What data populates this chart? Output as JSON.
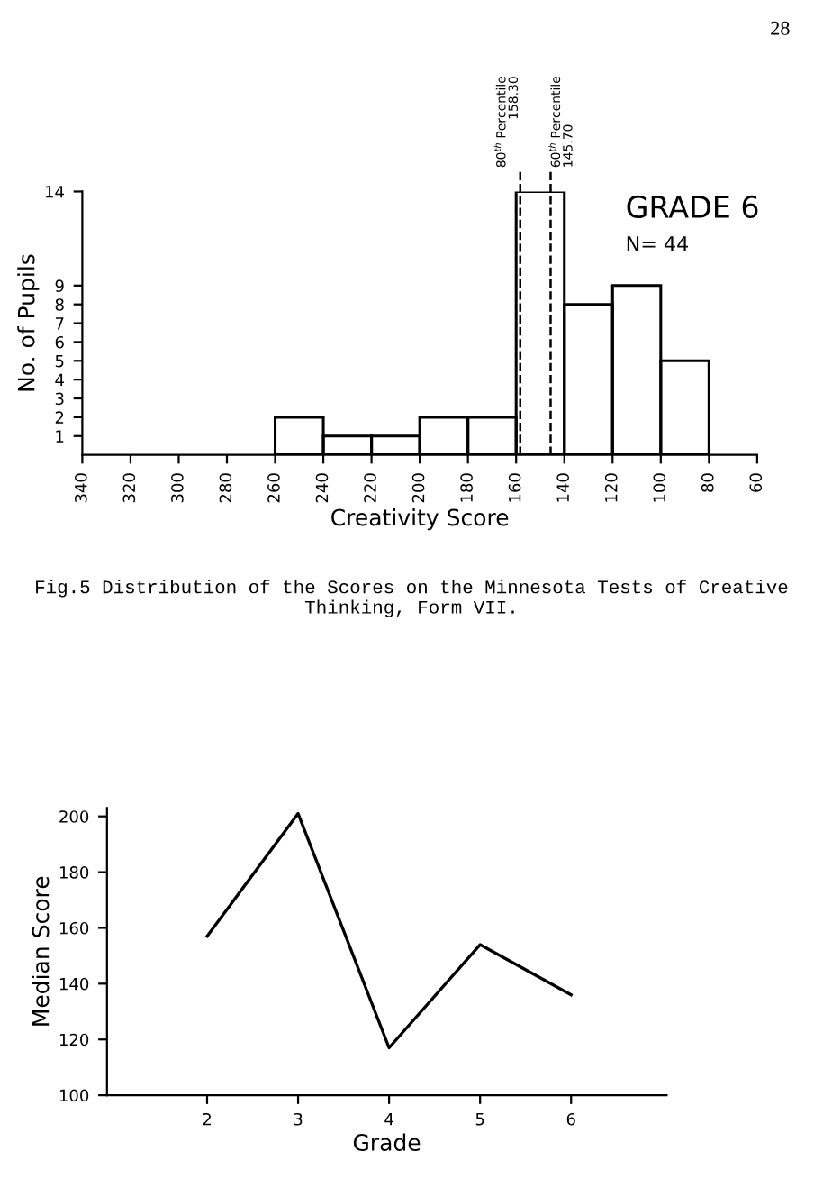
{
  "chart_data": [
    {
      "type": "histogram",
      "xlabel": "Creativity Score",
      "ylabel": "No. of Pupils",
      "color": "#000000",
      "bins": [
        260,
        240,
        220,
        200,
        180,
        160,
        140,
        120,
        100,
        80
      ],
      "values": [
        2,
        1,
        1,
        2,
        2,
        14,
        8,
        9,
        5
      ],
      "xlim": [
        340,
        60
      ],
      "xticks": [
        340,
        320,
        300,
        280,
        260,
        240,
        220,
        200,
        180,
        160,
        140,
        120,
        100,
        80,
        60
      ],
      "ylim": [
        0,
        14
      ],
      "yticks": [
        1,
        2,
        3,
        4,
        5,
        6,
        7,
        8,
        9,
        14
      ],
      "ref_lines": [
        {
          "axis": "x",
          "value": 158.3,
          "label": "80$^{th}$ Percentile\n158.30",
          "line_style": "dashed",
          "color": "#000000"
        },
        {
          "axis": "x",
          "value": 145.7,
          "label": "60$^{th}$ Percentile\n145.70",
          "line_style": "dashed",
          "color": "#000000"
        }
      ],
      "annotations": [
        "GRADE 6",
        "N= 44",
        "Fig.5 Distribution of the Scores on the Minnesota Tests of Creative Thinking, Form VII.",
        "28"
      ]
    },
    {
      "type": "line",
      "xlabel": "Grade",
      "ylabel": "Median Score",
      "marker": "none",
      "line_style": "solid",
      "x": [
        2,
        3,
        4,
        5,
        6
      ],
      "series": [
        {
          "color": "#000000",
          "values": [
            157,
            201,
            117,
            154,
            136
          ]
        }
      ],
      "xlim": [
        0.9,
        7.05
      ],
      "xticks": [
        2,
        3,
        4,
        5,
        6
      ],
      "ylim": [
        100,
        203
      ],
      "yticks": [
        100,
        120,
        140,
        160,
        180,
        200
      ]
    }
  ]
}
